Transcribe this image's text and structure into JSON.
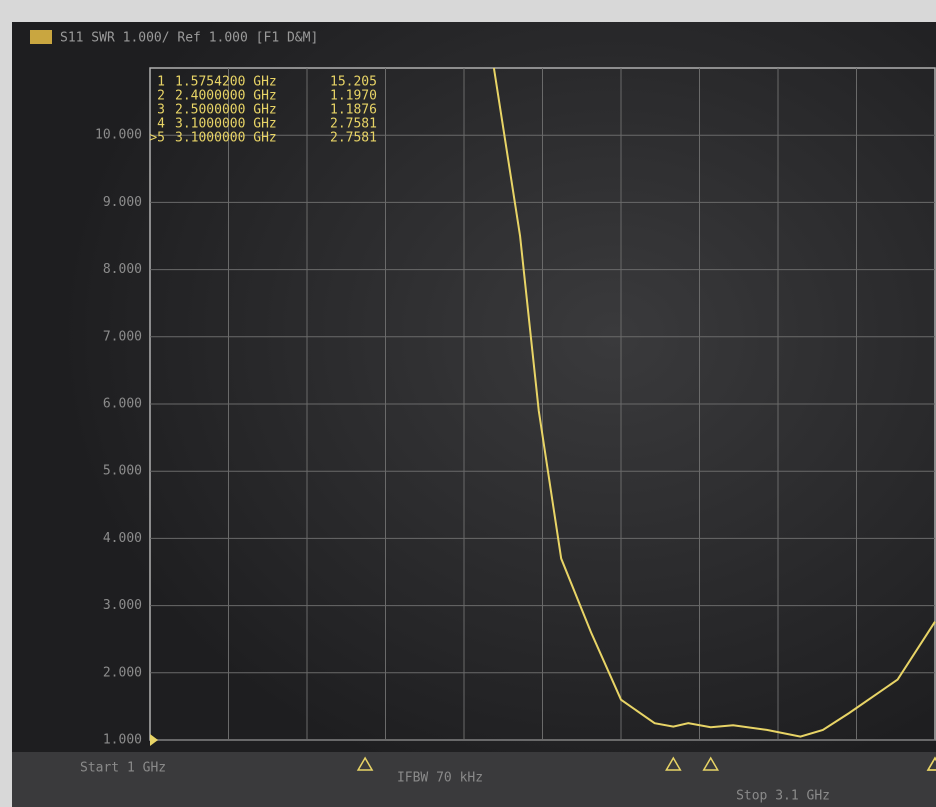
{
  "chart_data": {
    "type": "line",
    "title": "S11 SWR 1.000/ Ref 1.000 [F1 D&M]",
    "start_label": "Start 1 GHz",
    "bandwidth_label": "IFBW 70 kHz",
    "stop_label": "Stop 3.1 GHz",
    "xlim": [
      1,
      3.1
    ],
    "ylim": [
      1,
      11
    ],
    "yticks": [
      {
        "value": 1,
        "label": "1.000"
      },
      {
        "value": 2,
        "label": "2.000"
      },
      {
        "value": 3,
        "label": "3.000"
      },
      {
        "value": 4,
        "label": "4.000"
      },
      {
        "value": 5,
        "label": "5.000"
      },
      {
        "value": 6,
        "label": "6.000"
      },
      {
        "value": 7,
        "label": "7.000"
      },
      {
        "value": 8,
        "label": "8.000"
      },
      {
        "value": 9,
        "label": "9.000"
      },
      {
        "value": 10,
        "label": "10.000"
      }
    ],
    "grid": true,
    "series": [
      {
        "name": "S11",
        "color": "#e8d466",
        "x": [
          1.92,
          1.99,
          2.04,
          2.1,
          2.18,
          2.26,
          2.35,
          2.4,
          2.44,
          2.5,
          2.56,
          2.65,
          2.74,
          2.8,
          2.87,
          3.0,
          3.1
        ],
        "values": [
          11,
          8.5,
          5.9,
          3.7,
          2.6,
          1.6,
          1.25,
          1.2,
          1.25,
          1.19,
          1.22,
          1.15,
          1.05,
          1.15,
          1.4,
          1.9,
          2.76
        ]
      }
    ],
    "markers": [
      {
        "id": "1",
        "x": 1.57542,
        "freq": "1.5754200 GHz",
        "value": "15.205"
      },
      {
        "id": "2",
        "x": 2.4,
        "freq": "2.4000000 GHz",
        "value": "1.1970"
      },
      {
        "id": "3",
        "x": 2.5,
        "freq": "2.5000000 GHz",
        "value": "1.1876"
      },
      {
        "id": "4",
        "x": 3.1,
        "freq": "3.1000000 GHz",
        "value": "2.7581"
      },
      {
        "id": ">5",
        "x": 3.1,
        "freq": "3.1000000 GHz",
        "value": "2.7581"
      }
    ]
  }
}
